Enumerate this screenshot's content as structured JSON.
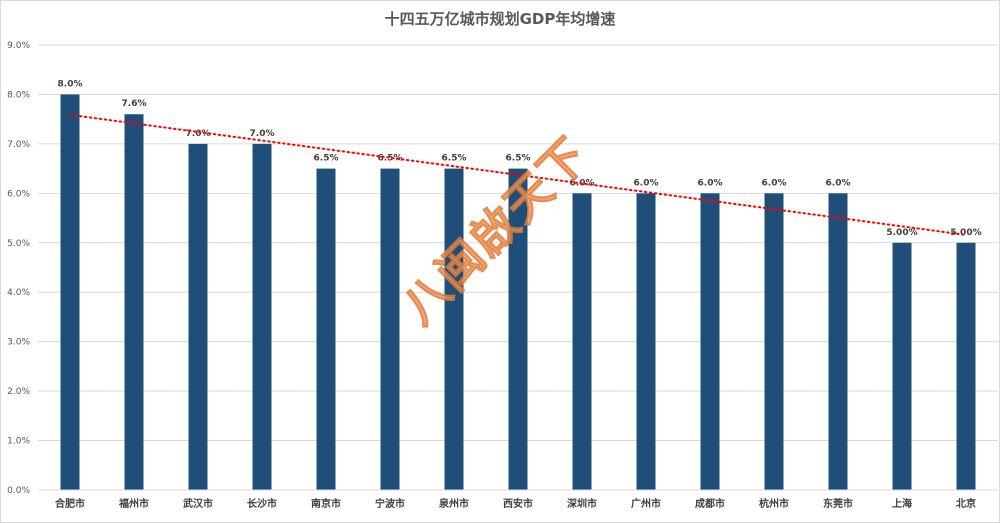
{
  "chart_data": {
    "type": "bar",
    "title": "十四五万亿城市规划GDP年均增速",
    "xlabel": "",
    "ylabel": "",
    "ylim": [
      0,
      9
    ],
    "y_ticks": [
      "0.0%",
      "1.0%",
      "2.0%",
      "3.0%",
      "4.0%",
      "5.0%",
      "6.0%",
      "7.0%",
      "8.0%",
      "9.0%"
    ],
    "grid": true,
    "categories": [
      "合肥市",
      "福州市",
      "武汉市",
      "长沙市",
      "南京市",
      "宁波市",
      "泉州市",
      "西安市",
      "深圳市",
      "广州市",
      "成都市",
      "杭州市",
      "东莞市",
      "上海",
      "北京"
    ],
    "values": [
      8.0,
      7.6,
      7.0,
      7.0,
      6.5,
      6.5,
      6.5,
      6.5,
      6.0,
      6.0,
      6.0,
      6.0,
      6.0,
      5.0,
      5.0
    ],
    "data_labels": [
      "8.0%",
      "7.6%",
      "7.0%",
      "7.0%",
      "6.5%",
      "6.5%",
      "6.5%",
      "6.5%",
      "6.0%",
      "6.0%",
      "6.0%",
      "6.0%",
      "6.0%",
      "5.00%",
      "5.00%"
    ],
    "bar_color": "#1f4e79",
    "trendline": {
      "type": "linear",
      "style": "dotted",
      "color": "#ff0000"
    }
  },
  "watermark": "八闽啟天下"
}
